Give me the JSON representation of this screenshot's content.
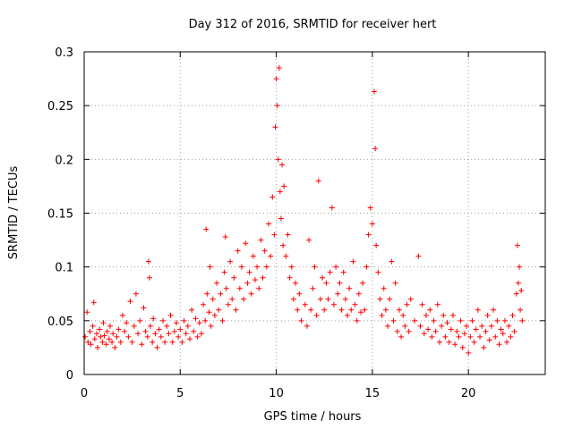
{
  "chart_data": {
    "type": "scatter",
    "title": "Day 312 of 2016, SRMTID for receiver hert",
    "xlabel": "GPS time / hours",
    "ylabel": "SRMTID / TECUs",
    "xlim": [
      0,
      24
    ],
    "ylim": [
      0,
      0.3
    ],
    "xticks": [
      0,
      5,
      10,
      15,
      20
    ],
    "xtick_labels": [
      "0",
      "5",
      "10",
      "15",
      "20"
    ],
    "yticks": [
      0,
      0.05,
      0.1,
      0.15,
      0.2,
      0.25,
      0.3
    ],
    "ytick_labels": [
      "0",
      "0.05",
      "0.1",
      "0.15",
      "0.2",
      "0.25",
      "0.3"
    ],
    "grid": true,
    "marker": "+",
    "color": "#ff0000",
    "series": [
      {
        "name": "SRMTID",
        "points": [
          [
            0.05,
            0.035
          ],
          [
            0.15,
            0.058
          ],
          [
            0.2,
            0.03
          ],
          [
            0.3,
            0.04
          ],
          [
            0.35,
            0.028
          ],
          [
            0.45,
            0.045
          ],
          [
            0.5,
            0.067
          ],
          [
            0.55,
            0.033
          ],
          [
            0.65,
            0.038
          ],
          [
            0.7,
            0.025
          ],
          [
            0.8,
            0.042
          ],
          [
            0.85,
            0.035
          ],
          [
            0.95,
            0.03
          ],
          [
            1.0,
            0.048
          ],
          [
            1.05,
            0.036
          ],
          [
            1.15,
            0.028
          ],
          [
            1.2,
            0.04
          ],
          [
            1.3,
            0.033
          ],
          [
            1.35,
            0.045
          ],
          [
            1.45,
            0.03
          ],
          [
            1.5,
            0.038
          ],
          [
            1.6,
            0.025
          ],
          [
            1.7,
            0.035
          ],
          [
            1.8,
            0.042
          ],
          [
            1.9,
            0.03
          ],
          [
            2.0,
            0.055
          ],
          [
            2.1,
            0.04
          ],
          [
            2.2,
            0.048
          ],
          [
            2.3,
            0.035
          ],
          [
            2.4,
            0.068
          ],
          [
            2.5,
            0.03
          ],
          [
            2.6,
            0.045
          ],
          [
            2.7,
            0.075
          ],
          [
            2.8,
            0.038
          ],
          [
            2.9,
            0.05
          ],
          [
            3.0,
            0.028
          ],
          [
            3.1,
            0.062
          ],
          [
            3.2,
            0.04
          ],
          [
            3.3,
            0.035
          ],
          [
            3.35,
            0.105
          ],
          [
            3.4,
            0.09
          ],
          [
            3.45,
            0.045
          ],
          [
            3.55,
            0.03
          ],
          [
            3.6,
            0.052
          ],
          [
            3.7,
            0.038
          ],
          [
            3.8,
            0.025
          ],
          [
            3.9,
            0.042
          ],
          [
            4.0,
            0.035
          ],
          [
            4.1,
            0.05
          ],
          [
            4.2,
            0.03
          ],
          [
            4.3,
            0.045
          ],
          [
            4.4,
            0.038
          ],
          [
            4.5,
            0.055
          ],
          [
            4.6,
            0.03
          ],
          [
            4.7,
            0.04
          ],
          [
            4.8,
            0.048
          ],
          [
            4.9,
            0.035
          ],
          [
            5.0,
            0.042
          ],
          [
            5.1,
            0.03
          ],
          [
            5.2,
            0.05
          ],
          [
            5.3,
            0.038
          ],
          [
            5.4,
            0.045
          ],
          [
            5.5,
            0.033
          ],
          [
            5.6,
            0.06
          ],
          [
            5.7,
            0.04
          ],
          [
            5.8,
            0.052
          ],
          [
            5.9,
            0.035
          ],
          [
            6.0,
            0.048
          ],
          [
            6.1,
            0.038
          ],
          [
            6.2,
            0.065
          ],
          [
            6.3,
            0.05
          ],
          [
            6.35,
            0.135
          ],
          [
            6.4,
            0.075
          ],
          [
            6.5,
            0.058
          ],
          [
            6.55,
            0.1
          ],
          [
            6.6,
            0.045
          ],
          [
            6.7,
            0.07
          ],
          [
            6.8,
            0.055
          ],
          [
            6.9,
            0.085
          ],
          [
            7.0,
            0.06
          ],
          [
            7.1,
            0.075
          ],
          [
            7.2,
            0.05
          ],
          [
            7.3,
            0.095
          ],
          [
            7.35,
            0.128
          ],
          [
            7.4,
            0.08
          ],
          [
            7.5,
            0.065
          ],
          [
            7.6,
            0.105
          ],
          [
            7.7,
            0.07
          ],
          [
            7.8,
            0.09
          ],
          [
            7.9,
            0.06
          ],
          [
            8.0,
            0.115
          ],
          [
            8.1,
            0.08
          ],
          [
            8.2,
            0.1
          ],
          [
            8.3,
            0.07
          ],
          [
            8.4,
            0.122
          ],
          [
            8.5,
            0.085
          ],
          [
            8.6,
            0.095
          ],
          [
            8.7,
            0.075
          ],
          [
            8.8,
            0.11
          ],
          [
            8.9,
            0.088
          ],
          [
            9.0,
            0.1
          ],
          [
            9.1,
            0.08
          ],
          [
            9.2,
            0.125
          ],
          [
            9.3,
            0.09
          ],
          [
            9.4,
            0.115
          ],
          [
            9.5,
            0.1
          ],
          [
            9.6,
            0.14
          ],
          [
            9.7,
            0.11
          ],
          [
            9.8,
            0.165
          ],
          [
            9.9,
            0.13
          ],
          [
            9.95,
            0.23
          ],
          [
            10.0,
            0.275
          ],
          [
            10.05,
            0.25
          ],
          [
            10.1,
            0.2
          ],
          [
            10.15,
            0.285
          ],
          [
            10.2,
            0.17
          ],
          [
            10.25,
            0.145
          ],
          [
            10.3,
            0.195
          ],
          [
            10.35,
            0.12
          ],
          [
            10.4,
            0.175
          ],
          [
            10.5,
            0.11
          ],
          [
            10.6,
            0.13
          ],
          [
            10.7,
            0.09
          ],
          [
            10.8,
            0.1
          ],
          [
            10.9,
            0.07
          ],
          [
            11.0,
            0.085
          ],
          [
            11.1,
            0.06
          ],
          [
            11.2,
            0.075
          ],
          [
            11.3,
            0.05
          ],
          [
            11.5,
            0.065
          ],
          [
            11.6,
            0.045
          ],
          [
            11.7,
            0.125
          ],
          [
            11.8,
            0.06
          ],
          [
            11.9,
            0.08
          ],
          [
            12.0,
            0.1
          ],
          [
            12.1,
            0.055
          ],
          [
            12.2,
            0.18
          ],
          [
            12.3,
            0.07
          ],
          [
            12.4,
            0.09
          ],
          [
            12.5,
            0.06
          ],
          [
            12.6,
            0.085
          ],
          [
            12.7,
            0.07
          ],
          [
            12.8,
            0.095
          ],
          [
            12.9,
            0.155
          ],
          [
            13.0,
            0.065
          ],
          [
            13.1,
            0.1
          ],
          [
            13.2,
            0.075
          ],
          [
            13.3,
            0.085
          ],
          [
            13.4,
            0.06
          ],
          [
            13.5,
            0.095
          ],
          [
            13.6,
            0.07
          ],
          [
            13.7,
            0.055
          ],
          [
            13.8,
            0.08
          ],
          [
            13.9,
            0.06
          ],
          [
            14.0,
            0.105
          ],
          [
            14.1,
            0.065
          ],
          [
            14.2,
            0.05
          ],
          [
            14.3,
            0.075
          ],
          [
            14.4,
            0.058
          ],
          [
            14.5,
            0.085
          ],
          [
            14.6,
            0.06
          ],
          [
            14.7,
            0.1
          ],
          [
            14.8,
            0.13
          ],
          [
            14.9,
            0.155
          ],
          [
            15.0,
            0.14
          ],
          [
            15.1,
            0.263
          ],
          [
            15.15,
            0.21
          ],
          [
            15.2,
            0.12
          ],
          [
            15.3,
            0.095
          ],
          [
            15.4,
            0.07
          ],
          [
            15.5,
            0.055
          ],
          [
            15.6,
            0.08
          ],
          [
            15.7,
            0.06
          ],
          [
            15.8,
            0.045
          ],
          [
            15.9,
            0.07
          ],
          [
            16.0,
            0.105
          ],
          [
            16.1,
            0.05
          ],
          [
            16.2,
            0.085
          ],
          [
            16.3,
            0.04
          ],
          [
            16.4,
            0.06
          ],
          [
            16.5,
            0.035
          ],
          [
            16.6,
            0.055
          ],
          [
            16.7,
            0.045
          ],
          [
            16.8,
            0.065
          ],
          [
            16.9,
            0.04
          ],
          [
            17.0,
            0.07
          ],
          [
            17.2,
            0.05
          ],
          [
            17.4,
            0.11
          ],
          [
            17.5,
            0.045
          ],
          [
            17.6,
            0.065
          ],
          [
            17.7,
            0.038
          ],
          [
            17.8,
            0.055
          ],
          [
            17.9,
            0.042
          ],
          [
            18.0,
            0.06
          ],
          [
            18.1,
            0.035
          ],
          [
            18.2,
            0.05
          ],
          [
            18.3,
            0.04
          ],
          [
            18.4,
            0.065
          ],
          [
            18.5,
            0.03
          ],
          [
            18.6,
            0.045
          ],
          [
            18.7,
            0.055
          ],
          [
            18.8,
            0.035
          ],
          [
            18.9,
            0.048
          ],
          [
            19.0,
            0.03
          ],
          [
            19.1,
            0.042
          ],
          [
            19.2,
            0.055
          ],
          [
            19.3,
            0.028
          ],
          [
            19.4,
            0.04
          ],
          [
            19.5,
            0.035
          ],
          [
            19.6,
            0.05
          ],
          [
            19.7,
            0.025
          ],
          [
            19.8,
            0.038
          ],
          [
            19.9,
            0.045
          ],
          [
            20.0,
            0.02
          ],
          [
            20.1,
            0.035
          ],
          [
            20.2,
            0.05
          ],
          [
            20.3,
            0.03
          ],
          [
            20.4,
            0.042
          ],
          [
            20.5,
            0.06
          ],
          [
            20.6,
            0.035
          ],
          [
            20.7,
            0.045
          ],
          [
            20.8,
            0.025
          ],
          [
            20.9,
            0.04
          ],
          [
            21.0,
            0.055
          ],
          [
            21.1,
            0.032
          ],
          [
            21.2,
            0.045
          ],
          [
            21.3,
            0.06
          ],
          [
            21.4,
            0.035
          ],
          [
            21.5,
            0.05
          ],
          [
            21.6,
            0.028
          ],
          [
            21.7,
            0.042
          ],
          [
            21.8,
            0.038
          ],
          [
            21.9,
            0.05
          ],
          [
            22.0,
            0.03
          ],
          [
            22.1,
            0.045
          ],
          [
            22.2,
            0.035
          ],
          [
            22.3,
            0.055
          ],
          [
            22.4,
            0.04
          ],
          [
            22.5,
            0.075
          ],
          [
            22.55,
            0.12
          ],
          [
            22.6,
            0.085
          ],
          [
            22.65,
            0.1
          ],
          [
            22.7,
            0.06
          ],
          [
            22.75,
            0.078
          ],
          [
            22.8,
            0.05
          ]
        ]
      }
    ]
  }
}
